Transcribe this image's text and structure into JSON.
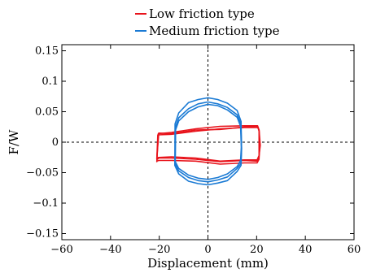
{
  "chart_data": {
    "type": "line",
    "xlabel": "Displacement (mm)",
    "ylabel": "F/W",
    "xlim": [
      -60,
      60
    ],
    "ylim": [
      -0.16,
      0.16
    ],
    "x_ticks": [
      -60,
      -40,
      -20,
      0,
      20,
      40,
      60
    ],
    "x_tick_labels": [
      "−60",
      "−40",
      "−20",
      "0",
      "20",
      "40",
      "60"
    ],
    "y_ticks": [
      -0.15,
      -0.1,
      -0.05,
      0,
      0.05,
      0.1,
      0.15
    ],
    "y_tick_labels": [
      "−0.15",
      "−0.1",
      "−0.05",
      "0",
      "0.05",
      "0.1",
      "0.15"
    ],
    "grid": false,
    "reference_lines": {
      "x": 0,
      "y": 0,
      "style": "dashed"
    },
    "legend_position": "top-center (above plot)",
    "series": [
      {
        "name": "Low friction type",
        "color": "#e8131b",
        "loops": [
          {
            "x": [
              -21,
              -20.6,
              -15,
              -5,
              5,
              15,
              20.6,
              21,
              21.3,
              21,
              20.2,
              15,
              5,
              -5,
              -15,
              -20.2,
              -20.8,
              -21
            ],
            "y": [
              -0.028,
              0.012,
              0.013,
              0.018,
              0.022,
              0.024,
              0.024,
              0.018,
              -0.005,
              -0.025,
              -0.031,
              -0.03,
              -0.032,
              -0.028,
              -0.026,
              -0.026,
              -0.028,
              -0.028
            ]
          },
          {
            "x": [
              -21,
              -20.4,
              -15,
              -5,
              5,
              15,
              20.4,
              21,
              21,
              21,
              20.2,
              15,
              5,
              -5,
              -15,
              -20.2,
              -21,
              -21
            ],
            "y": [
              -0.032,
              0.014,
              0.016,
              0.022,
              0.026,
              0.027,
              0.027,
              0.02,
              -0.005,
              -0.028,
              -0.034,
              -0.034,
              -0.036,
              -0.031,
              -0.03,
              -0.03,
              -0.031,
              -0.032
            ]
          },
          {
            "x": [
              -21,
              -20.2,
              -15,
              -5,
              5,
              15,
              20.2,
              21,
              21.5,
              21,
              20.2,
              15,
              5,
              -5,
              -15,
              -20.2,
              -21,
              -21
            ],
            "y": [
              -0.026,
              0.015,
              0.014,
              0.02,
              0.021,
              0.025,
              0.026,
              0.02,
              -0.005,
              -0.022,
              -0.029,
              -0.029,
              -0.031,
              -0.026,
              -0.024,
              -0.025,
              -0.026,
              -0.026
            ]
          }
        ]
      },
      {
        "name": "Medium friction type",
        "color": "#1a7ad4",
        "loops": [
          {
            "x": [
              -13.5,
              -13.3,
              -12,
              -8,
              -4,
              0,
              4,
              8,
              12,
              13.5,
              13.8,
              13.5,
              12,
              8,
              4,
              0,
              -4,
              -8,
              -12,
              -13.5
            ],
            "y": [
              -0.035,
              0.025,
              0.04,
              0.055,
              0.063,
              0.066,
              0.063,
              0.057,
              0.045,
              0.03,
              -0.01,
              -0.035,
              -0.043,
              -0.057,
              -0.062,
              -0.065,
              -0.063,
              -0.058,
              -0.047,
              -0.035
            ]
          },
          {
            "x": [
              -13.6,
              -13.5,
              -12,
              -8,
              -4,
              0,
              4,
              8,
              12,
              13.6,
              13.8,
              13.6,
              12,
              8,
              4,
              0,
              -4,
              -8,
              -12,
              -13.6
            ],
            "y": [
              -0.038,
              0.03,
              0.048,
              0.065,
              0.07,
              0.073,
              0.07,
              0.064,
              0.052,
              0.034,
              -0.012,
              -0.038,
              -0.048,
              -0.063,
              -0.067,
              -0.07,
              -0.068,
              -0.064,
              -0.052,
              -0.038
            ]
          },
          {
            "x": [
              -13.4,
              -13.3,
              -12,
              -8,
              -4,
              0,
              4,
              8,
              12,
              13.4,
              13.7,
              13.4,
              12,
              8,
              4,
              0,
              -4,
              -8,
              -12,
              -13.4
            ],
            "y": [
              -0.032,
              0.02,
              0.035,
              0.05,
              0.058,
              0.062,
              0.06,
              0.053,
              0.041,
              0.026,
              -0.008,
              -0.03,
              -0.04,
              -0.052,
              -0.058,
              -0.061,
              -0.059,
              -0.054,
              -0.043,
              -0.032
            ]
          }
        ]
      }
    ]
  }
}
